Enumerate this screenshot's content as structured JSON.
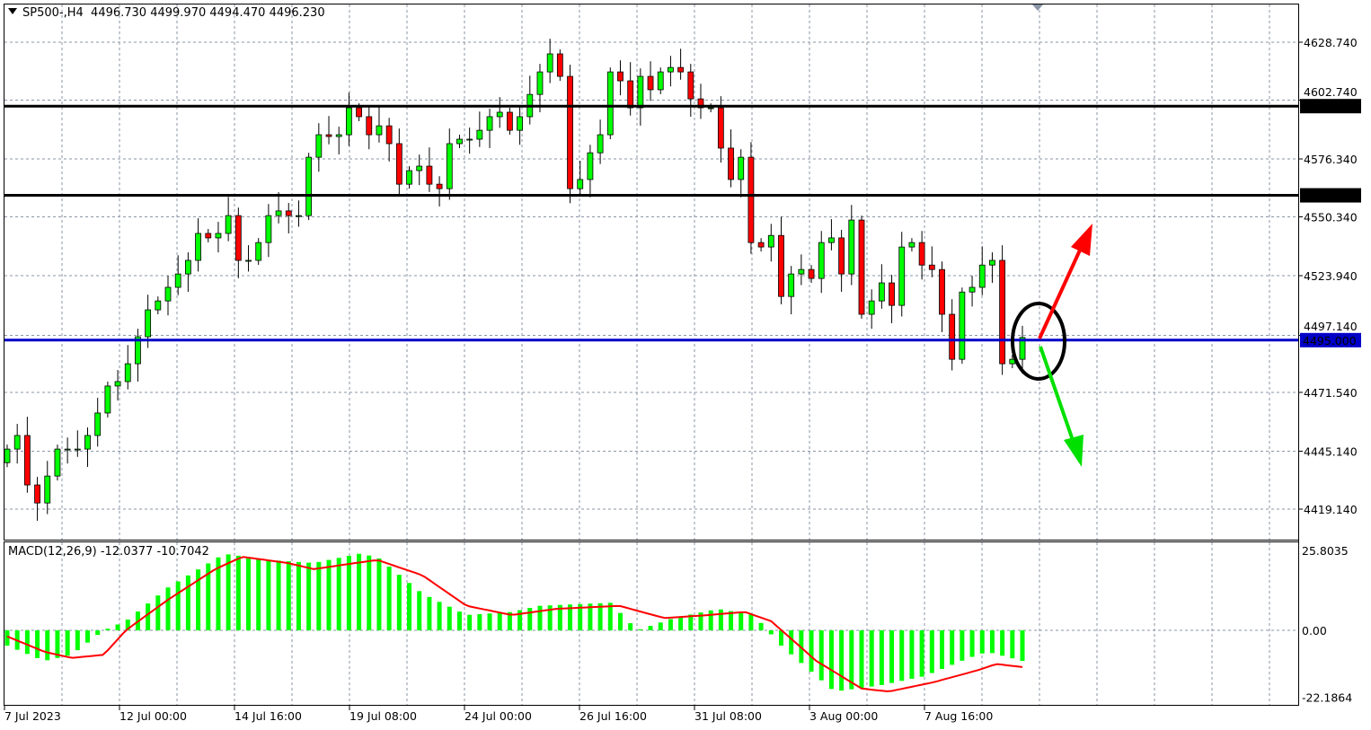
{
  "header": {
    "symbol": "SP500-,H4",
    "open": "4496.730",
    "high": "4499.970",
    "low": "4494.470",
    "close": "4496.230"
  },
  "colors": {
    "bull": "#00ff00",
    "bear": "#ff0000",
    "wick": "#000000",
    "grid": "#8a96a6",
    "support_line": "#0000c8",
    "resistance_line": "#000000",
    "signal": "#ff0000",
    "histogram": "#00ff00",
    "arrow_up": "#ff0000",
    "arrow_down": "#00e000"
  },
  "chart_data": [
    {
      "type": "candlestick",
      "title": "SP500-,H4",
      "ylim": [
        4410,
        4640
      ],
      "yticks": [
        "4628.740",
        "4602.740",
        "4576.340",
        "4550.340",
        "4523.940",
        "4497.140",
        "4471.540",
        "4445.140",
        "4419.140"
      ],
      "xticks": [
        "7 Jul 2023",
        "12 Jul 00:00",
        "14 Jul 16:00",
        "19 Jul 08:00",
        "24 Jul 00:00",
        "26 Jul 16:00",
        "31 Jul 08:00",
        "3 Aug 00:00",
        "7 Aug 16:00"
      ],
      "grid": true,
      "closes": [
        4446.1,
        4452.2,
        4430.0,
        4421.9,
        4434.0,
        4446.1,
        4446.1,
        4446.1,
        4452.2,
        4462.3,
        4474.4,
        4476.4,
        4484.4,
        4496.5,
        4508.6,
        4512.6,
        4518.7,
        4524.7,
        4530.8,
        4542.9,
        4540.9,
        4542.9,
        4550.9,
        4530.8,
        4530.8,
        4538.8,
        4550.9,
        4553.0,
        4550.9,
        4550.9,
        4577.1,
        4587.2,
        4586.4,
        4587.2,
        4599.3,
        4595.3,
        4587.2,
        4591.2,
        4583.2,
        4565.0,
        4571.1,
        4573.1,
        4565.0,
        4563.0,
        4583.2,
        4585.2,
        4585.2,
        4589.2,
        4595.3,
        4597.3,
        4589.2,
        4595.3,
        4605.3,
        4615.4,
        4623.5,
        4613.4,
        4563.0,
        4567.1,
        4579.1,
        4587.2,
        4615.4,
        4611.4,
        4599.3,
        4613.4,
        4607.4,
        4615.4,
        4617.4,
        4615.4,
        4603.3,
        4599.3,
        4599.3,
        4581.2,
        4567.1,
        4577.1,
        4538.8,
        4536.8,
        4542.0,
        4514.6,
        4524.7,
        4526.7,
        4522.7,
        4538.8,
        4540.9,
        4524.7,
        4548.9,
        4506.6,
        4512.6,
        4520.7,
        4510.6,
        4536.8,
        4538.8,
        4528.7,
        4526.7,
        4506.6,
        4486.4,
        4516.6,
        4518.7,
        4528.7,
        4530.8,
        4484.4,
        4486.4,
        4496.2
      ],
      "first_open": 4440.0,
      "horizontal_lines": [
        {
          "price": 4600.039,
          "label": "4600.039",
          "color": "#000000"
        },
        {
          "price": 4560.0,
          "label": "4560.000",
          "color": "#000000"
        },
        {
          "price": 4495.0,
          "label": "4495.000",
          "color": "#0000c8"
        }
      ],
      "annotations": [
        "ellipse-around-last-bars",
        "arrow-up-red",
        "arrow-down-green"
      ]
    },
    {
      "type": "macd",
      "label": "MACD(12,26,9) -12.0377 -10.7042",
      "ylim": [
        -22.1864,
        25.8035
      ],
      "yticks": [
        "25.8035",
        "0.00",
        "-22.1864"
      ],
      "histogram_keypoints": [
        [
          0,
          -5
        ],
        [
          3.7,
          -10
        ],
        [
          6.4,
          -8
        ],
        [
          9.6,
          0
        ],
        [
          11.8,
          3
        ],
        [
          16,
          14
        ],
        [
          21.6,
          25
        ],
        [
          26,
          23
        ],
        [
          30.5,
          22
        ],
        [
          35,
          25
        ],
        [
          36.8,
          24
        ],
        [
          41.3,
          12
        ],
        [
          45.7,
          5
        ],
        [
          50.2,
          6
        ],
        [
          52.9,
          8
        ],
        [
          60,
          9
        ],
        [
          62.7,
          0
        ],
        [
          65.4,
          3
        ],
        [
          66.3,
          4
        ],
        [
          70.7,
          7
        ],
        [
          74.3,
          5
        ],
        [
          77,
          -5
        ],
        [
          82.3,
          -20
        ],
        [
          86.8,
          -18
        ],
        [
          91.2,
          -15
        ],
        [
          95.7,
          -9
        ],
        [
          97.5,
          -7
        ],
        [
          101,
          -10
        ]
      ],
      "signal_keypoints": [
        [
          0,
          -2
        ],
        [
          3.7,
          -7
        ],
        [
          6.4,
          -9
        ],
        [
          9.6,
          -8
        ],
        [
          11.8,
          0
        ],
        [
          16,
          10
        ],
        [
          20.7,
          20
        ],
        [
          23.4,
          24
        ],
        [
          27.9,
          22
        ],
        [
          30.5,
          20
        ],
        [
          36.8,
          23
        ],
        [
          41.3,
          18
        ],
        [
          45.7,
          8
        ],
        [
          50.2,
          5
        ],
        [
          54.6,
          7
        ],
        [
          60.9,
          8
        ],
        [
          65.4,
          4
        ],
        [
          69.8,
          5
        ],
        [
          73.4,
          6
        ],
        [
          76,
          3
        ],
        [
          80.5,
          -10
        ],
        [
          85,
          -19
        ],
        [
          87.7,
          -20
        ],
        [
          92.1,
          -17
        ],
        [
          96.6,
          -13
        ],
        [
          98.4,
          -11
        ],
        [
          101,
          -12
        ]
      ]
    }
  ]
}
